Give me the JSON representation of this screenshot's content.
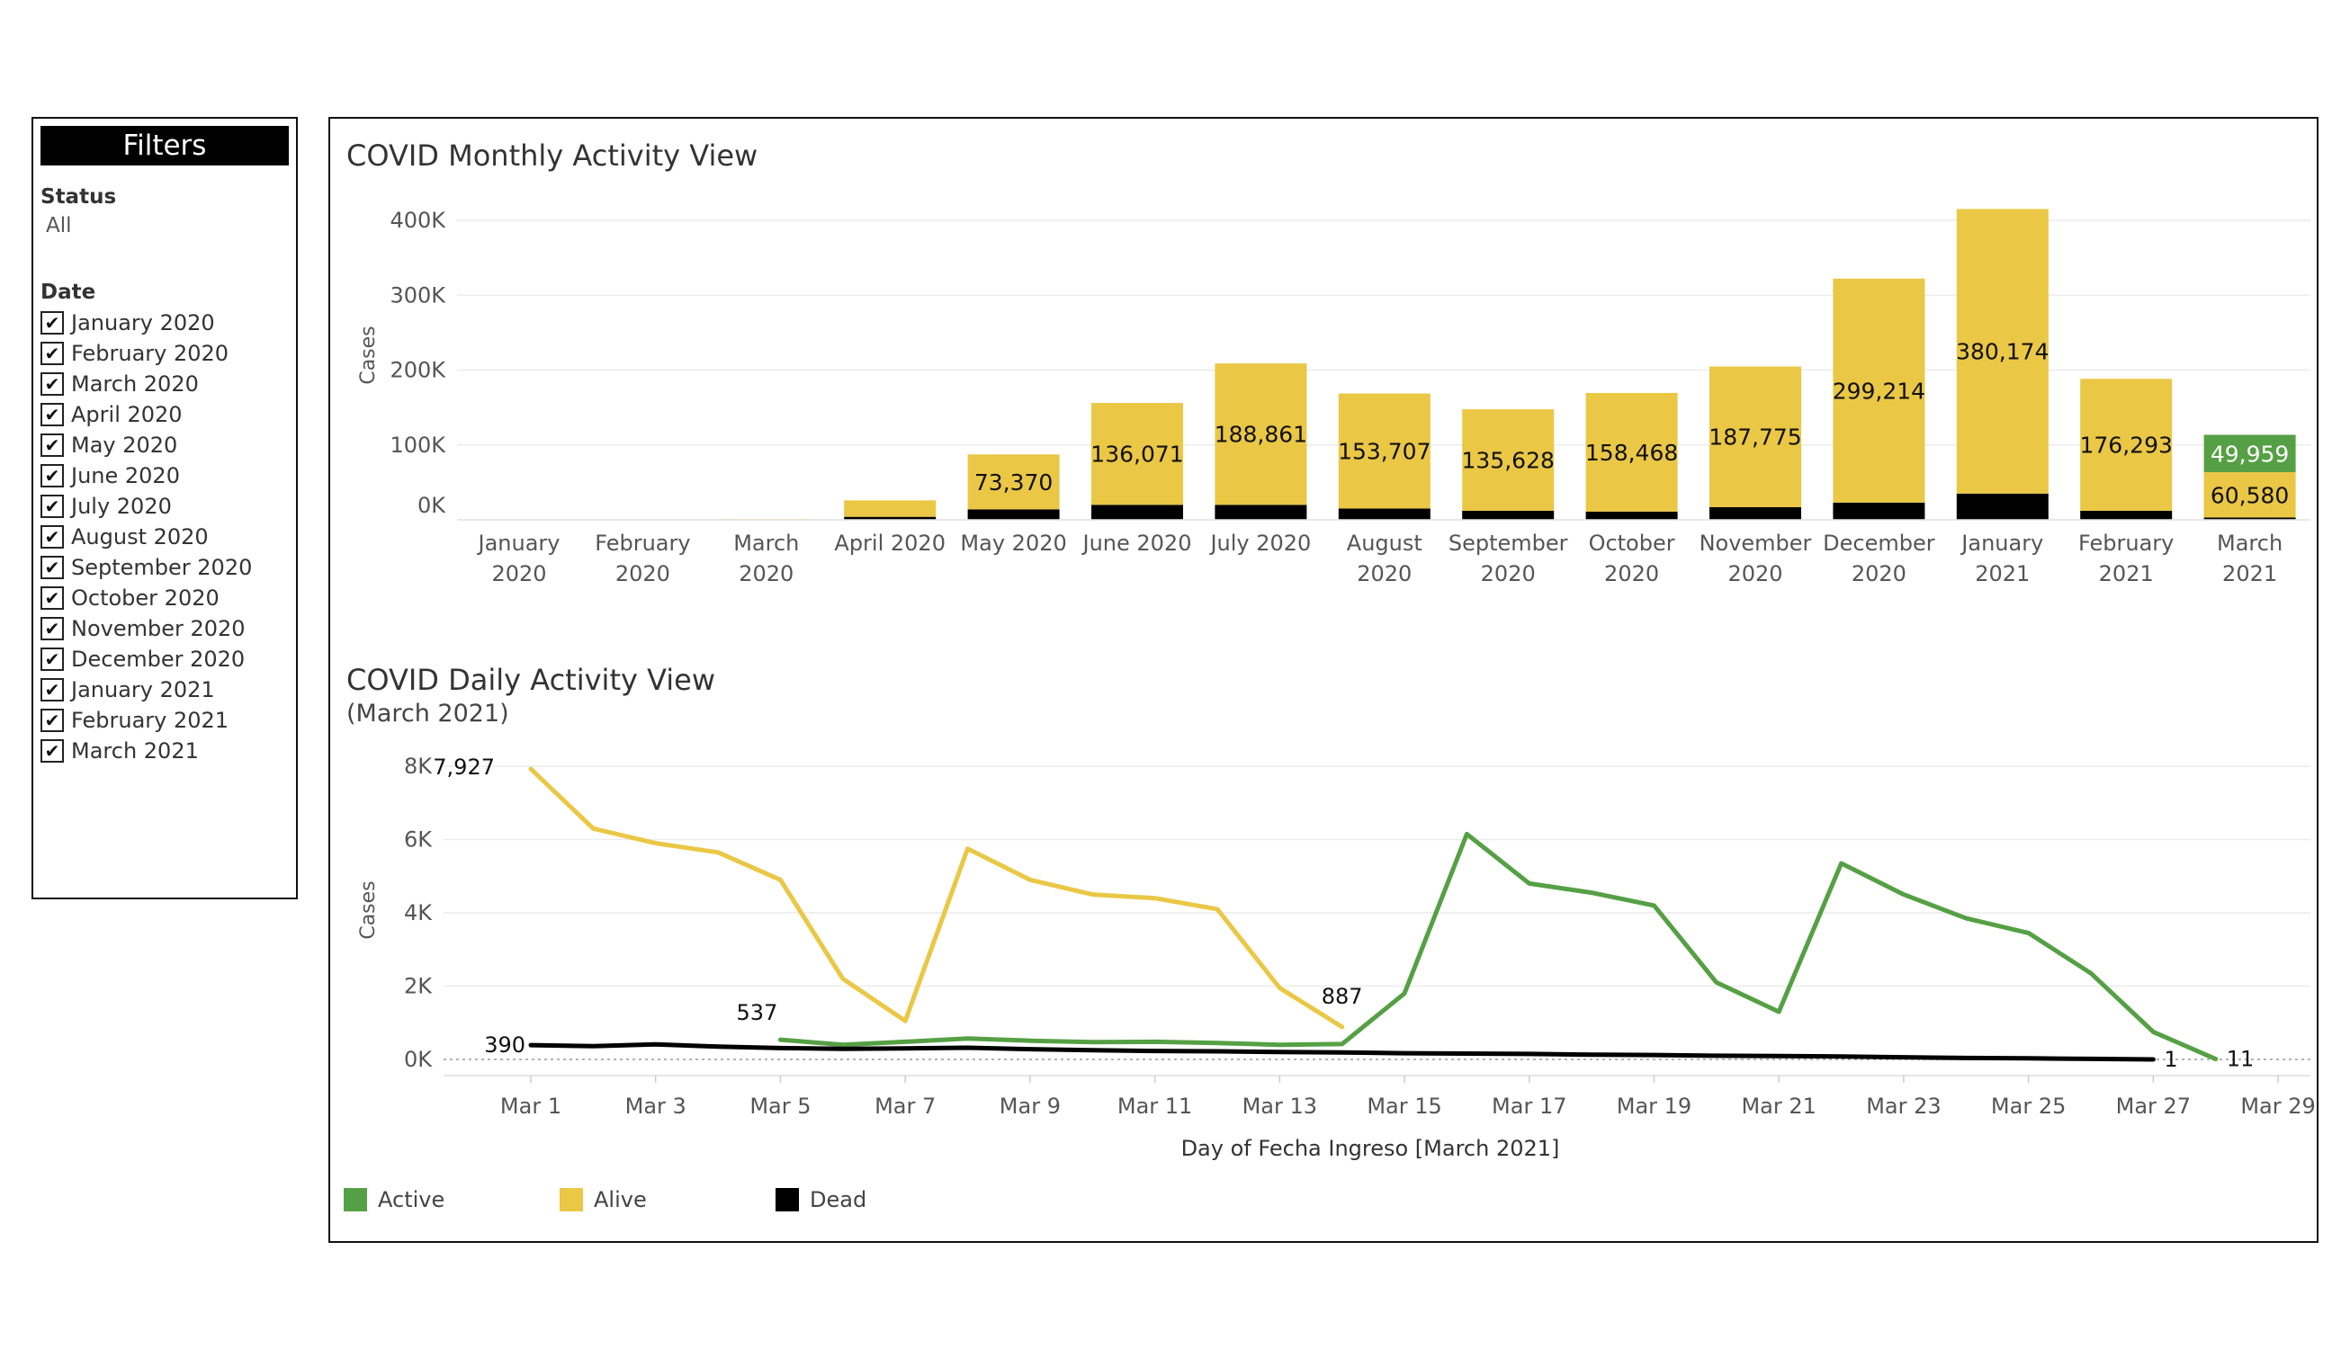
{
  "filters": {
    "header": "Filters",
    "status_title": "Status",
    "status_value": "All",
    "date_title": "Date",
    "dates": [
      "January 2020",
      "February 2020",
      "March 2020",
      "April 2020",
      "May 2020",
      "June 2020",
      "July 2020",
      "August 2020",
      "September 2020",
      "October 2020",
      "November 2020",
      "December 2020",
      "January 2021",
      "February 2021",
      "March 2021"
    ]
  },
  "colors": {
    "active": "#55a044",
    "alive": "#eac745",
    "dead": "#000000"
  },
  "chart_data": [
    {
      "type": "bar",
      "title": "COVID Monthly Activity View",
      "ylabel": "Cases",
      "ylim": [
        0,
        400000
      ],
      "yticks": [
        "0K",
        "100K",
        "200K",
        "300K",
        "400K"
      ],
      "categories": [
        [
          "January",
          "2020"
        ],
        [
          "February",
          "2020"
        ],
        [
          "March",
          "2020"
        ],
        [
          "April 2020"
        ],
        [
          "May 2020"
        ],
        [
          "June 2020"
        ],
        [
          "July 2020"
        ],
        [
          "August",
          "2020"
        ],
        [
          "September",
          "2020"
        ],
        [
          "October",
          "2020"
        ],
        [
          "November",
          "2020"
        ],
        [
          "December",
          "2020"
        ],
        [
          "January",
          "2021"
        ],
        [
          "February",
          "2021"
        ],
        [
          "March",
          "2021"
        ]
      ],
      "series": [
        {
          "name": "Dead",
          "values": [
            0,
            0,
            150,
            4000,
            14000,
            20000,
            20000,
            15000,
            12000,
            11000,
            17000,
            23000,
            35000,
            12000,
            3000
          ]
        },
        {
          "name": "Alive",
          "values": [
            0,
            0,
            800,
            22000,
            73370,
            136071,
            188861,
            153707,
            135628,
            158468,
            187775,
            299214,
            380174,
            176293,
            60580
          ]
        },
        {
          "name": "Active",
          "values": [
            0,
            0,
            0,
            0,
            0,
            0,
            0,
            0,
            0,
            0,
            0,
            0,
            0,
            0,
            49959
          ]
        }
      ],
      "data_labels": [
        {
          "series": "Alive",
          "index": 4,
          "text": "73,370"
        },
        {
          "series": "Alive",
          "index": 5,
          "text": "136,071"
        },
        {
          "series": "Alive",
          "index": 6,
          "text": "188,861"
        },
        {
          "series": "Alive",
          "index": 7,
          "text": "153,707"
        },
        {
          "series": "Alive",
          "index": 8,
          "text": "135,628"
        },
        {
          "series": "Alive",
          "index": 9,
          "text": "158,468"
        },
        {
          "series": "Alive",
          "index": 10,
          "text": "187,775"
        },
        {
          "series": "Alive",
          "index": 11,
          "text": "299,214"
        },
        {
          "series": "Alive",
          "index": 12,
          "text": "380,174"
        },
        {
          "series": "Alive",
          "index": 13,
          "text": "176,293"
        },
        {
          "series": "Alive",
          "index": 14,
          "text": "60,580"
        },
        {
          "series": "Active",
          "index": 14,
          "text": "49,959"
        }
      ],
      "grid": true
    },
    {
      "type": "line",
      "title": "COVID Daily Activity View",
      "subtitle": "(March 2021)",
      "xlabel": "Day of Fecha Ingreso [March 2021]",
      "ylabel": "Cases",
      "ylim": [
        0,
        8000
      ],
      "yticks": [
        "0K",
        "2K",
        "4K",
        "6K",
        "8K"
      ],
      "xlim": [
        0,
        29
      ],
      "xticks": [
        "Mar 1",
        "Mar 3",
        "Mar 5",
        "Mar 7",
        "Mar 9",
        "Mar 11",
        "Mar 13",
        "Mar 15",
        "Mar 17",
        "Mar 19",
        "Mar 21",
        "Mar 23",
        "Mar 25",
        "Mar 27",
        "Mar 29"
      ],
      "series": [
        {
          "name": "Alive",
          "x": [
            1,
            2,
            3,
            4,
            5,
            6,
            7,
            8,
            9,
            10,
            11,
            12,
            13,
            14
          ],
          "y": [
            7927,
            6300,
            5900,
            5650,
            4900,
            2200,
            1050,
            5750,
            4900,
            4500,
            4400,
            4100,
            1950,
            887
          ]
        },
        {
          "name": "Active",
          "x": [
            5,
            6,
            7,
            8,
            9,
            10,
            11,
            12,
            13,
            14,
            15,
            16,
            17,
            18,
            19,
            20,
            21,
            22,
            23,
            24,
            25,
            26,
            27,
            28
          ],
          "y": [
            537,
            400,
            480,
            570,
            510,
            470,
            480,
            450,
            400,
            420,
            1800,
            6150,
            4800,
            4550,
            4200,
            2100,
            1300,
            5350,
            4500,
            3850,
            3450,
            2350,
            750,
            11
          ]
        },
        {
          "name": "Dead",
          "x": [
            1,
            2,
            3,
            4,
            5,
            6,
            7,
            8,
            9,
            10,
            11,
            12,
            13,
            14,
            15,
            16,
            17,
            18,
            19,
            20,
            21,
            22,
            23,
            24,
            25,
            26,
            27
          ],
          "y": [
            390,
            360,
            410,
            350,
            310,
            290,
            300,
            320,
            280,
            250,
            230,
            220,
            200,
            190,
            170,
            160,
            150,
            130,
            120,
            100,
            90,
            80,
            60,
            40,
            30,
            15,
            1
          ]
        }
      ],
      "point_labels": [
        {
          "series": "Alive",
          "x": 1,
          "text": "7,927"
        },
        {
          "series": "Alive",
          "x": 14,
          "text": "887"
        },
        {
          "series": "Active",
          "x": 5,
          "text": "537"
        },
        {
          "series": "Active",
          "x": 28,
          "text": "11"
        },
        {
          "series": "Dead",
          "x": 1,
          "text": "390"
        },
        {
          "series": "Dead",
          "x": 27,
          "text": "1"
        }
      ],
      "grid": true
    }
  ],
  "legend": [
    {
      "name": "Active",
      "color": "#55a044"
    },
    {
      "name": "Alive",
      "color": "#eac745"
    },
    {
      "name": "Dead",
      "color": "#000000"
    }
  ]
}
